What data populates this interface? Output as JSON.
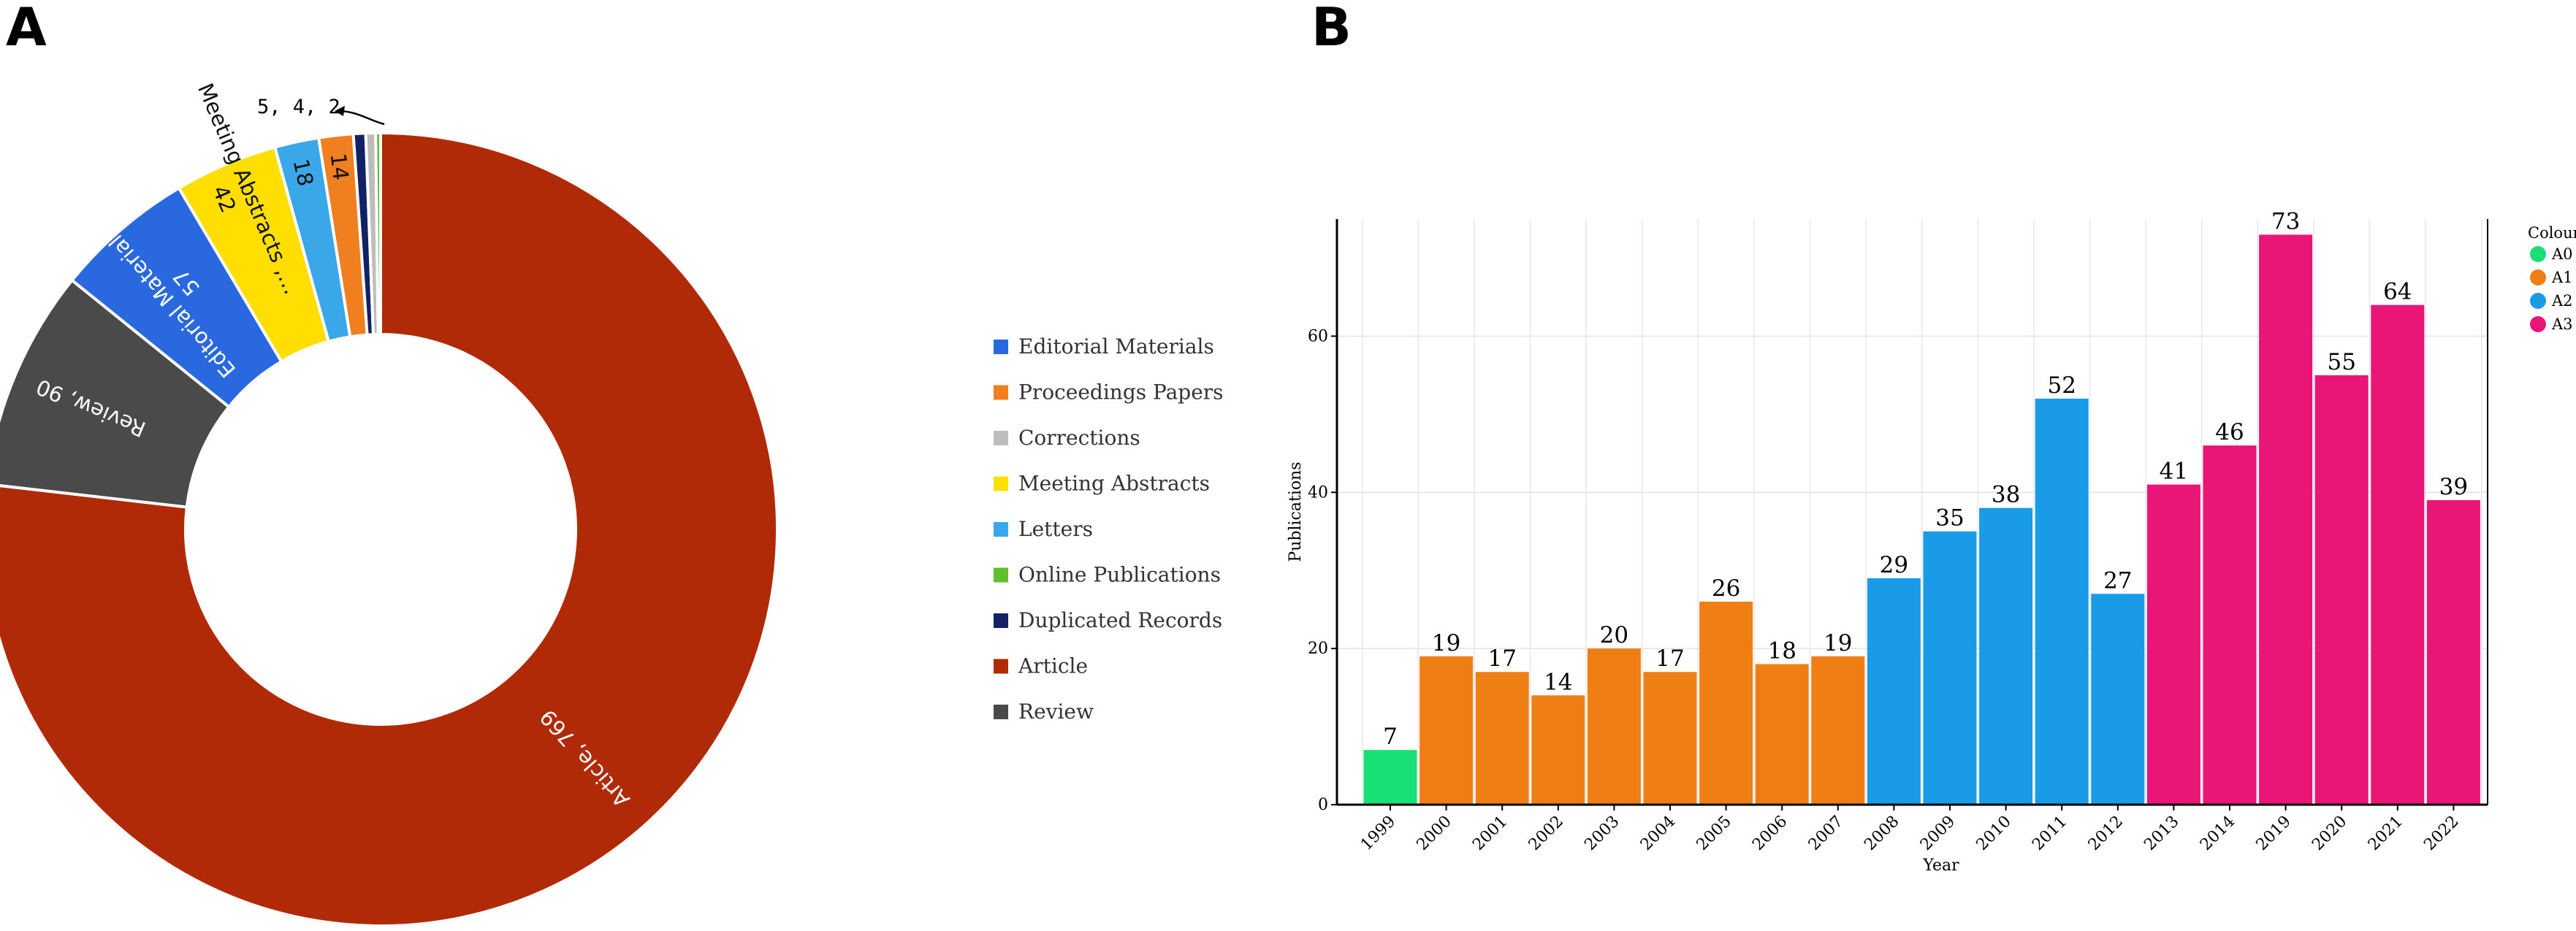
{
  "panels": {
    "a": "A",
    "b": "B"
  },
  "chart_data": [
    {
      "type": "pie",
      "variant": "donut",
      "panel": "A",
      "legend_position": "right",
      "callout": "5, 4, 2",
      "slices": [
        {
          "name": "Article",
          "value": 769,
          "color": "#b02a08",
          "label": "Article, 769"
        },
        {
          "name": "Review",
          "value": 90,
          "color": "#4a4a4a",
          "label": "Review, 90"
        },
        {
          "name": "Editorial Materials",
          "value": 57,
          "color": "#2a68df",
          "label": "Editorial Materials,",
          "label2": "57"
        },
        {
          "name": "Meeting Abstracts",
          "value": 42,
          "color": "#ffde00",
          "label": "Meeting Abstracts ,…",
          "label2": "42"
        },
        {
          "name": "Letters",
          "value": 18,
          "color": "#3aa7e8",
          "label": "18"
        },
        {
          "name": "Proceedings Papers",
          "value": 14,
          "color": "#ef7f1f",
          "label": "14"
        },
        {
          "name": "Duplicated Records",
          "value": 5,
          "color": "#122066"
        },
        {
          "name": "Corrections",
          "value": 4,
          "color": "#bdbdbd"
        },
        {
          "name": "Online Publications",
          "value": 2,
          "color": "#5dc02c"
        }
      ],
      "legend": [
        {
          "name": "Editorial Materials",
          "color": "#2a68df"
        },
        {
          "name": "Proceedings Papers",
          "color": "#ef7f1f"
        },
        {
          "name": "Corrections",
          "color": "#bdbdbd"
        },
        {
          "name": "Meeting Abstracts",
          "color": "#ffde00"
        },
        {
          "name": "Letters",
          "color": "#3aa7e8"
        },
        {
          "name": "Online Publications",
          "color": "#5dc02c"
        },
        {
          "name": "Duplicated Records",
          "color": "#122066"
        },
        {
          "name": "Article",
          "color": "#b02a08"
        },
        {
          "name": "Review",
          "color": "#4a4a4a"
        }
      ]
    },
    {
      "type": "bar",
      "panel": "B",
      "xlabel": "Year",
      "ylabel": "Publications",
      "ylim": [
        0,
        75
      ],
      "yticks": [
        0,
        20,
        40,
        60
      ],
      "grid": true,
      "legend_title": "Colour",
      "legend_position": "right",
      "groups": [
        {
          "name": "A0",
          "color": "#19e076"
        },
        {
          "name": "A1",
          "color": "#ef7f14"
        },
        {
          "name": "A2",
          "color": "#1a9be8"
        },
        {
          "name": "A3",
          "color": "#ea1677"
        }
      ],
      "categories": [
        "1999",
        "2000",
        "2001",
        "2002",
        "2003",
        "2004",
        "2005",
        "2006",
        "2007",
        "2008",
        "2009",
        "2010",
        "2011",
        "2012",
        "2013",
        "2014",
        "2019",
        "2020",
        "2021",
        "2022"
      ],
      "values": [
        7,
        19,
        17,
        14,
        20,
        17,
        26,
        18,
        19,
        29,
        35,
        38,
        52,
        27,
        41,
        46,
        73,
        55,
        64,
        39
      ],
      "group_of_bar": [
        "A0",
        "A1",
        "A1",
        "A1",
        "A1",
        "A1",
        "A1",
        "A1",
        "A1",
        "A2",
        "A2",
        "A2",
        "A2",
        "A2",
        "A3",
        "A3",
        "A3",
        "A3",
        "A3",
        "A3"
      ]
    }
  ]
}
